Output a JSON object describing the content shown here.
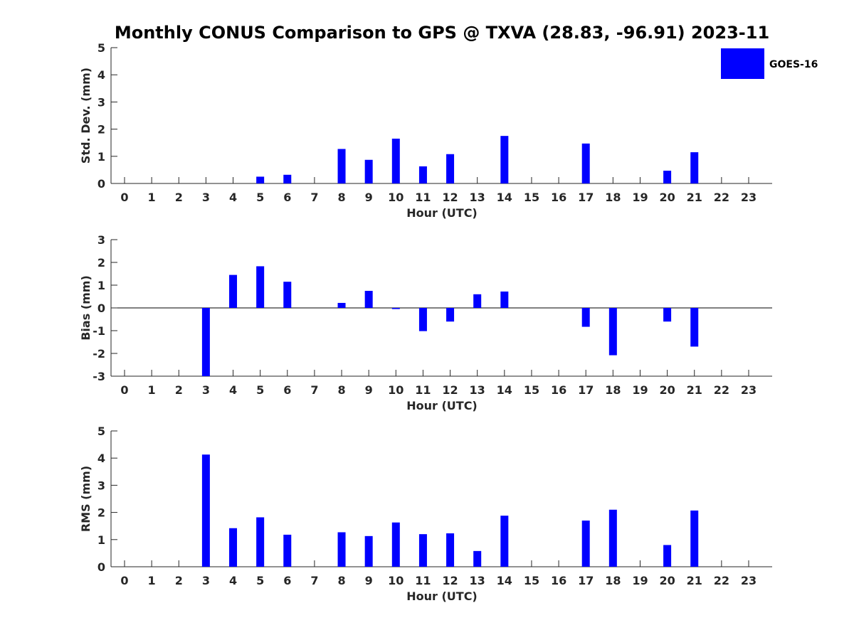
{
  "title": "Monthly CONUS Comparison to GPS @ TXVA (28.83, -96.91) 2023-11",
  "legend": {
    "label": "GOES-16",
    "color": "#0000ff",
    "placement": "top-right"
  },
  "colors": {
    "bar": "#0000ff",
    "axis": "#262626",
    "zero_line": "#000000"
  },
  "chart_data": [
    {
      "type": "bar",
      "panel": "std-dev",
      "xlabel": "Hour (UTC)",
      "ylabel": "Std. Dev. (mm)",
      "ylim": [
        0,
        5
      ],
      "yticks": [
        0,
        1,
        2,
        3,
        4,
        5
      ],
      "categories": [
        "0",
        "1",
        "2",
        "3",
        "4",
        "5",
        "6",
        "7",
        "8",
        "9",
        "10",
        "11",
        "12",
        "13",
        "14",
        "15",
        "16",
        "17",
        "18",
        "19",
        "20",
        "21",
        "22",
        "23"
      ],
      "series": [
        {
          "name": "GOES-16",
          "values": [
            null,
            null,
            null,
            null,
            null,
            0.25,
            0.32,
            null,
            1.27,
            0.87,
            1.65,
            0.63,
            1.08,
            null,
            1.75,
            null,
            null,
            1.47,
            null,
            null,
            0.47,
            1.15,
            null,
            null
          ]
        }
      ]
    },
    {
      "type": "bar",
      "panel": "bias",
      "xlabel": "Hour (UTC)",
      "ylabel": "Bias (mm)",
      "ylim": [
        -3,
        3
      ],
      "yticks": [
        -3,
        -2,
        -1,
        0,
        1,
        2,
        3
      ],
      "categories": [
        "0",
        "1",
        "2",
        "3",
        "4",
        "5",
        "6",
        "7",
        "8",
        "9",
        "10",
        "11",
        "12",
        "13",
        "14",
        "15",
        "16",
        "17",
        "18",
        "19",
        "20",
        "21",
        "22",
        "23"
      ],
      "series": [
        {
          "name": "GOES-16",
          "values": [
            null,
            null,
            null,
            -3.0,
            1.45,
            1.83,
            1.15,
            null,
            0.22,
            0.75,
            -0.05,
            -1.02,
            -0.6,
            0.6,
            0.72,
            null,
            null,
            -0.83,
            -2.08,
            null,
            -0.6,
            -1.7,
            null,
            null
          ]
        }
      ]
    },
    {
      "type": "bar",
      "panel": "rms",
      "xlabel": "Hour (UTC)",
      "ylabel": "RMS (mm)",
      "ylim": [
        0,
        5
      ],
      "yticks": [
        0,
        1,
        2,
        3,
        4,
        5
      ],
      "categories": [
        "0",
        "1",
        "2",
        "3",
        "4",
        "5",
        "6",
        "7",
        "8",
        "9",
        "10",
        "11",
        "12",
        "13",
        "14",
        "15",
        "16",
        "17",
        "18",
        "19",
        "20",
        "21",
        "22",
        "23"
      ],
      "series": [
        {
          "name": "GOES-16",
          "values": [
            null,
            null,
            null,
            4.13,
            1.42,
            1.82,
            1.18,
            null,
            1.27,
            1.13,
            1.63,
            1.2,
            1.23,
            0.58,
            1.88,
            null,
            null,
            1.7,
            2.1,
            null,
            0.8,
            2.07,
            null,
            null
          ]
        }
      ]
    }
  ]
}
